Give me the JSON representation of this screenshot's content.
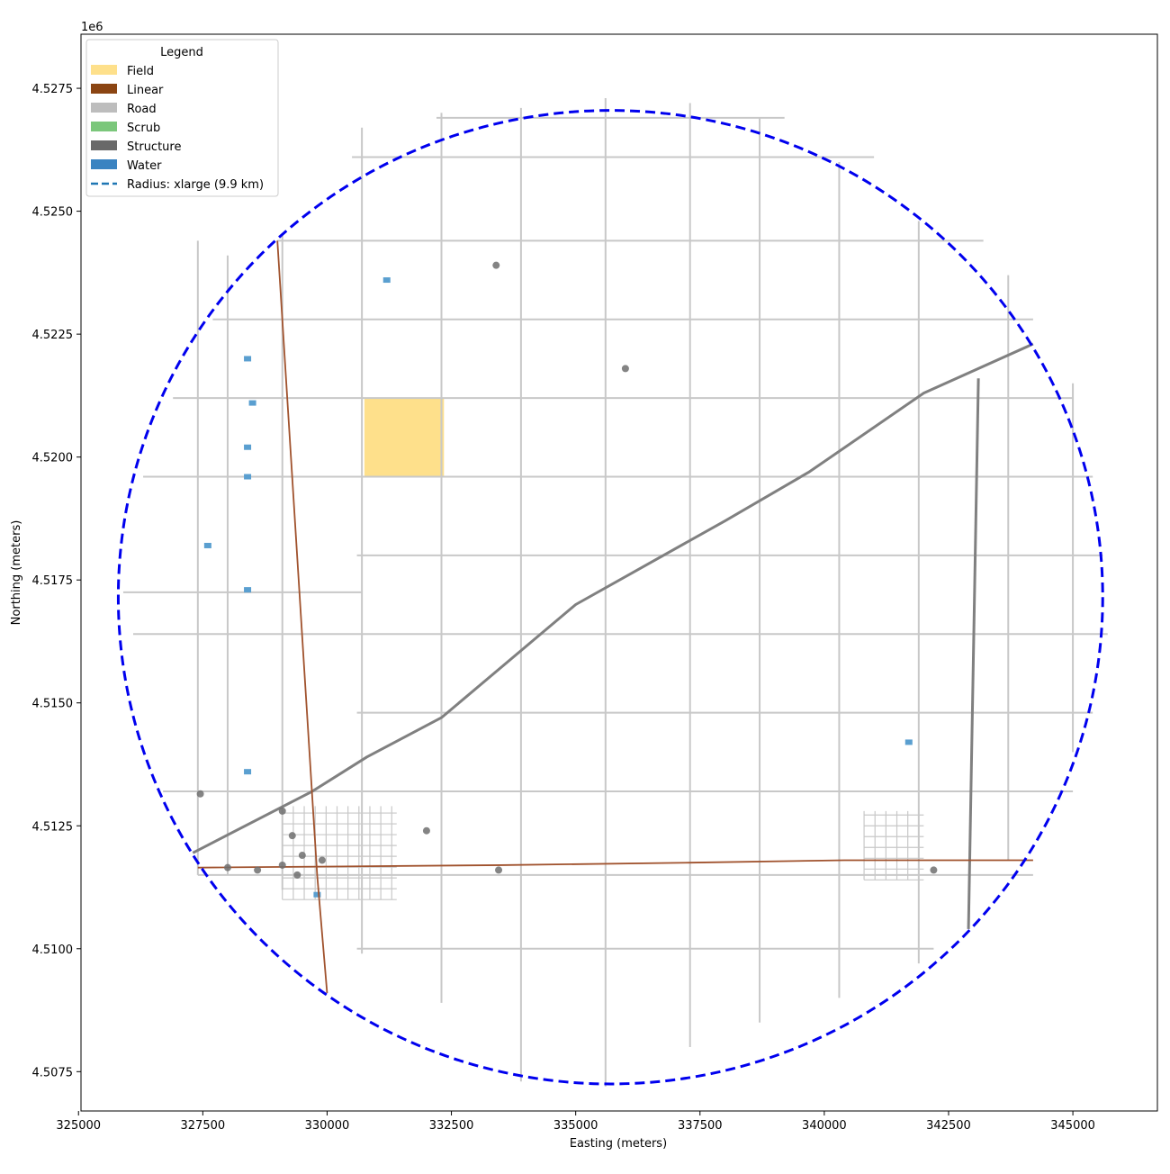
{
  "chart_data": {
    "type": "map",
    "xlabel": "Easting (meters)",
    "ylabel": "Northing (meters)",
    "y_offset_label": "1e6",
    "xlim": [
      325050,
      346700
    ],
    "ylim": [
      4506700,
      4528600
    ],
    "xticks": [
      {
        "value": 325000,
        "label": "325000"
      },
      {
        "value": 327500,
        "label": "327500"
      },
      {
        "value": 330000,
        "label": "330000"
      },
      {
        "value": 332500,
        "label": "332500"
      },
      {
        "value": 335000,
        "label": "335000"
      },
      {
        "value": 337500,
        "label": "337500"
      },
      {
        "value": 340000,
        "label": "340000"
      },
      {
        "value": 342500,
        "label": "342500"
      },
      {
        "value": 345000,
        "label": "345000"
      }
    ],
    "yticks": [
      {
        "value": 4507500,
        "label": "4.5075"
      },
      {
        "value": 4510000,
        "label": "4.5100"
      },
      {
        "value": 4512500,
        "label": "4.5125"
      },
      {
        "value": 4515000,
        "label": "4.5150"
      },
      {
        "value": 4517500,
        "label": "4.5175"
      },
      {
        "value": 4520000,
        "label": "4.5200"
      },
      {
        "value": 4522500,
        "label": "4.5225"
      },
      {
        "value": 4525000,
        "label": "4.5250"
      },
      {
        "value": 4527500,
        "label": "4.5275"
      }
    ],
    "grid": false,
    "legend": {
      "title": "Legend",
      "location": "upper-left",
      "items": [
        {
          "label": "Field",
          "color": "#fee08b",
          "kind": "patch"
        },
        {
          "label": "Linear",
          "color": "#8b4513",
          "kind": "patch"
        },
        {
          "label": "Road",
          "color": "#bdbdbd",
          "kind": "patch"
        },
        {
          "label": "Scrub",
          "color": "#7bc77b",
          "kind": "patch"
        },
        {
          "label": "Structure",
          "color": "#696969",
          "kind": "patch"
        },
        {
          "label": "Water",
          "color": "#3a83c1",
          "kind": "patch"
        },
        {
          "label": "Radius: xlarge (9.9 km)",
          "color": "#1f77b4",
          "kind": "dashed-line"
        }
      ]
    },
    "radius_circle": {
      "center": [
        335700,
        4517150
      ],
      "radius_m": 9900,
      "color": "#0000ee"
    },
    "colors": {
      "field": "#fee08b",
      "linear": "#a0522d",
      "road": "#c8c8c8",
      "structure": "#808080",
      "water": "#5a9fd0",
      "circle": "#0000ee"
    },
    "field_patches": [
      {
        "x": [
          330750,
          332350
        ],
        "y": [
          4519600,
          4521200
        ]
      }
    ],
    "roads_ns": [
      {
        "x": 327400,
        "y": [
          4511500,
          4524400
        ]
      },
      {
        "x": 328000,
        "y": [
          4511500,
          4524100
        ]
      },
      {
        "x": 329100,
        "y": [
          4511200,
          4524500
        ]
      },
      {
        "x": 330700,
        "y": [
          4509900,
          4526700
        ]
      },
      {
        "x": 332300,
        "y": [
          4508900,
          4527000
        ]
      },
      {
        "x": 333900,
        "y": [
          4507300,
          4527100
        ]
      },
      {
        "x": 335600,
        "y": [
          4507200,
          4527300
        ]
      },
      {
        "x": 337300,
        "y": [
          4508000,
          4527200
        ]
      },
      {
        "x": 338700,
        "y": [
          4508500,
          4526900
        ]
      },
      {
        "x": 340300,
        "y": [
          4509000,
          4526000
        ]
      },
      {
        "x": 341900,
        "y": [
          4509700,
          4524800
        ]
      },
      {
        "x": 343700,
        "y": [
          4511800,
          4523700
        ]
      },
      {
        "x": 345000,
        "y": [
          4514000,
          4521500
        ]
      }
    ],
    "roads_ew": [
      {
        "y": 4526900,
        "x": [
          332200,
          339200
        ]
      },
      {
        "y": 4526100,
        "x": [
          330500,
          341000
        ]
      },
      {
        "y": 4524400,
        "x": [
          329000,
          343200
        ]
      },
      {
        "y": 4522800,
        "x": [
          327700,
          344200
        ]
      },
      {
        "y": 4521200,
        "x": [
          326900,
          345000
        ]
      },
      {
        "y": 4519600,
        "x": [
          326300,
          345400
        ]
      },
      {
        "y": 4518000,
        "x": [
          330600,
          345600
        ]
      },
      {
        "y": 4517250,
        "x": [
          325900,
          330700
        ]
      },
      {
        "y": 4516400,
        "x": [
          326100,
          345700
        ]
      },
      {
        "y": 4514800,
        "x": [
          330600,
          345400
        ]
      },
      {
        "y": 4513200,
        "x": [
          326700,
          345000
        ]
      },
      {
        "y": 4511500,
        "x": [
          327400,
          344200
        ]
      },
      {
        "y": 4510000,
        "x": [
          330600,
          342200
        ]
      }
    ],
    "structure_lines": [
      {
        "name": "diagonal-transmission",
        "points": [
          [
            327300,
            4511950
          ],
          [
            329700,
            4513200
          ],
          [
            330800,
            4513900
          ],
          [
            332300,
            4514700
          ],
          [
            335000,
            4517000
          ],
          [
            338000,
            4518700
          ],
          [
            339700,
            4519700
          ],
          [
            342000,
            4521300
          ],
          [
            344200,
            4522300
          ]
        ]
      },
      {
        "name": "north-south-transmission",
        "points": [
          [
            342900,
            4510400
          ],
          [
            343100,
            4521600
          ]
        ]
      }
    ],
    "linear_features": [
      {
        "name": "north-south-rail",
        "points": [
          [
            329000,
            4524400
          ],
          [
            329800,
            4511500
          ],
          [
            330000,
            4509100
          ]
        ]
      },
      {
        "name": "east-west-rail",
        "points": [
          [
            327400,
            4511650
          ],
          [
            333500,
            4511700
          ],
          [
            337300,
            4511750
          ],
          [
            340400,
            4511800
          ],
          [
            344200,
            4511800
          ]
        ]
      }
    ],
    "structure_points": [
      [
        327450,
        4513150
      ],
      [
        329100,
        4512800
      ],
      [
        329300,
        4512300
      ],
      [
        329100,
        4511700
      ],
      [
        329500,
        4511900
      ],
      [
        329900,
        4511800
      ],
      [
        332000,
        4512400
      ],
      [
        333450,
        4511600
      ],
      [
        336000,
        4521800
      ],
      [
        333400,
        4523900
      ],
      [
        328000,
        4511650
      ],
      [
        328600,
        4511600
      ],
      [
        329400,
        4511500
      ],
      [
        342200,
        4511600
      ]
    ],
    "water_patches": [
      [
        331200,
        4523600
      ],
      [
        328400,
        4522000
      ],
      [
        328400,
        4520200
      ],
      [
        328500,
        4521100
      ],
      [
        328400,
        4519600
      ],
      [
        327600,
        4518200
      ],
      [
        328400,
        4517300
      ],
      [
        328400,
        4513600
      ],
      [
        329800,
        4511100
      ],
      [
        341700,
        4514200
      ]
    ]
  }
}
